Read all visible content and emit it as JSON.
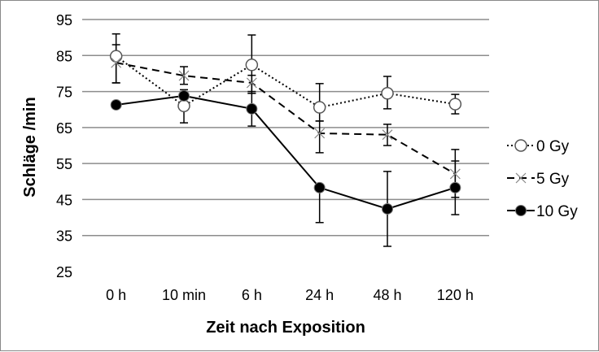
{
  "chart_data": {
    "type": "line",
    "title": "",
    "xlabel": "Zeit nach Exposition",
    "ylabel": "Schläge /min",
    "categories": [
      "0 h",
      "10 min",
      "6 h",
      "24 h",
      "48 h",
      "120 h"
    ],
    "ylim": [
      25,
      95
    ],
    "yticks": [
      25,
      35,
      45,
      55,
      65,
      75,
      85,
      95
    ],
    "grid": true,
    "legend_position": "right",
    "series": [
      {
        "name": "0 Gy",
        "marker": "open-circle",
        "line": "dotted",
        "values": [
          84.8,
          71.0,
          82.4,
          70.6,
          74.5,
          71.5
        ],
        "err_low": [
          77.4,
          66.3,
          74.5,
          66.8,
          70.2,
          68.8
        ],
        "err_high": [
          91.0,
          74.0,
          90.7,
          77.2,
          79.2,
          74.2
        ]
      },
      {
        "name": "5 Gy",
        "marker": "x",
        "line": "dashed",
        "values": [
          83.0,
          79.4,
          77.4,
          63.4,
          63.0,
          52.1
        ],
        "err_low": [
          77.4,
          77.0,
          75.0,
          58.0,
          60.0,
          45.6
        ],
        "err_high": [
          88.0,
          81.9,
          79.5,
          66.8,
          65.9,
          58.9
        ]
      },
      {
        "name": "10 Gy",
        "marker": "filled-circle",
        "line": "solid",
        "values": [
          71.3,
          73.8,
          70.2,
          48.3,
          42.4,
          48.3
        ],
        "err_low": [
          71.3,
          72.0,
          65.4,
          38.6,
          32.0,
          40.8
        ],
        "err_high": [
          71.3,
          75.5,
          74.5,
          48.3,
          52.8,
          55.7
        ]
      }
    ]
  }
}
